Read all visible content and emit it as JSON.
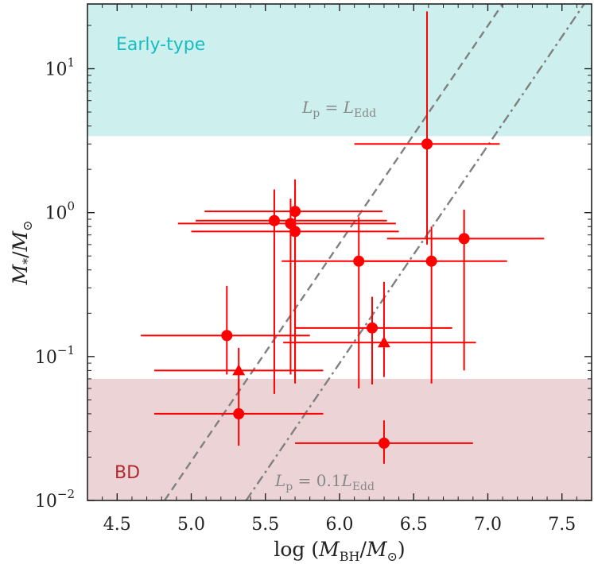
{
  "chart_data": {
    "type": "scatter",
    "xlabel": "log (M_BH/M_⊙)",
    "ylabel": "M_*/M_⊙",
    "x_range": [
      4.3,
      7.7
    ],
    "y_range_log10": [
      -2,
      1.45
    ],
    "y_scale": "log",
    "x_ticks": [
      4.5,
      5.0,
      5.5,
      6.0,
      6.5,
      7.0,
      7.5
    ],
    "x_tick_labels": [
      "4.5",
      "5.0",
      "5.5",
      "6.0",
      "6.5",
      "7.0",
      "7.5"
    ],
    "y_ticks": [
      -2,
      -1,
      0,
      1
    ],
    "y_tick_labels": [
      {
        "base": "10",
        "exp": "−2"
      },
      {
        "base": "10",
        "exp": "−1"
      },
      {
        "base": "10",
        "exp": "0"
      },
      {
        "base": "10",
        "exp": "1"
      }
    ],
    "regions": [
      {
        "name": "Early-type",
        "label": "Early-type",
        "y_min": 3.4,
        "y_max": 30,
        "color": "#cdf0ee",
        "text_color": "#17bcc0",
        "label_position": "top-left"
      },
      {
        "name": "BD",
        "label": "BD",
        "y_min": 0.001,
        "y_max": 0.07,
        "color": "#ebd3d6",
        "text_color": "#b02a30",
        "label_position": "bottom-left"
      }
    ],
    "lines": [
      {
        "name": "L_p = L_Edd",
        "label": "L_p = L_Edd",
        "style": "dashed",
        "color": "#808080",
        "x_at_ymin": 4.82,
        "x_at_ymax": 7.1
      },
      {
        "name": "L_p = 0.1 L_Edd",
        "label": "L_p = 0.1L_Edd",
        "style": "dash-dot",
        "color": "#808080",
        "x_at_ymin": 5.37,
        "x_at_ymax": 7.65
      }
    ],
    "series": [
      {
        "name": "circles",
        "marker": "circle",
        "color": "#ff0000",
        "points": [
          {
            "x": 6.59,
            "xerr": [
              0.49,
              0.49
            ],
            "y": 3.0,
            "yerr": [
              0.6,
              25.0
            ]
          },
          {
            "x": 5.56,
            "xerr": [
              0.53,
              0.76
            ],
            "y": 0.88,
            "yerr": [
              0.055,
              1.45
            ]
          },
          {
            "x": 5.67,
            "xerr": [
              0.76,
              0.71
            ],
            "y": 0.84,
            "yerr": [
              0.075,
              1.25
            ]
          },
          {
            "x": 5.7,
            "xerr": [
              0.61,
              0.59
            ],
            "y": 1.02,
            "yerr": [
              0.065,
              1.7
            ]
          },
          {
            "x": 5.7,
            "xerr": [
              0.7,
              0.7
            ],
            "y": 0.74,
            "yerr": [
              0.07,
              1.45
            ]
          },
          {
            "x": 6.84,
            "xerr": [
              0.52,
              0.54
            ],
            "y": 0.66,
            "yerr": [
              0.08,
              1.05
            ]
          },
          {
            "x": 6.13,
            "xerr": [
              0.52,
              0.53
            ],
            "y": 0.46,
            "yerr": [
              0.06,
              0.93
            ]
          },
          {
            "x": 6.62,
            "xerr": [
              0.51,
              0.51
            ],
            "y": 0.46,
            "yerr": [
              0.065,
              0.8
            ]
          },
          {
            "x": 5.24,
            "xerr": [
              0.58,
              0.56
            ],
            "y": 0.14,
            "yerr": [
              0.075,
              0.31
            ]
          },
          {
            "x": 6.22,
            "xerr": [
              0.52,
              0.54
            ],
            "y": 0.158,
            "yerr": [
              0.064,
              0.26
            ]
          },
          {
            "x": 5.32,
            "xerr": [
              0.57,
              0.57
            ],
            "y": 0.04,
            "yerr": [
              0.024,
              0.069
            ]
          },
          {
            "x": 6.3,
            "xerr": [
              0.6,
              0.6
            ],
            "y": 0.025,
            "yerr": [
              0.018,
              0.036
            ]
          }
        ]
      },
      {
        "name": "triangles",
        "marker": "triangle",
        "color": "#ff0000",
        "points": [
          {
            "x": 5.32,
            "xerr": [
              0.57,
              0.57
            ],
            "y": 0.08,
            "yerr": [
              0.055,
              0.115
            ]
          },
          {
            "x": 6.3,
            "xerr": [
              0.68,
              0.62
            ],
            "y": 0.125,
            "yerr": [
              0.072,
              0.33
            ]
          }
        ]
      }
    ]
  }
}
